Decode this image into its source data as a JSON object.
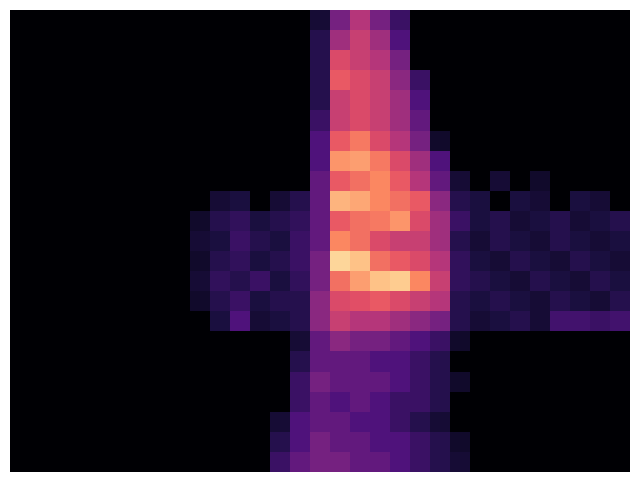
{
  "chart_data": {
    "type": "heatmap",
    "tick_labels": false,
    "zlim": [
      0,
      100
    ],
    "cells": [
      [
        0,
        0,
        0,
        0,
        0,
        0,
        0,
        0,
        0,
        0,
        0,
        0,
        0,
        0,
        0,
        10,
        35,
        50,
        35,
        20,
        0,
        0,
        0,
        0,
        0,
        0,
        0,
        0,
        0,
        0,
        0
      ],
      [
        0,
        0,
        0,
        0,
        0,
        0,
        0,
        0,
        0,
        0,
        0,
        0,
        0,
        0,
        0,
        15,
        45,
        55,
        45,
        25,
        0,
        0,
        0,
        0,
        0,
        0,
        0,
        0,
        0,
        0,
        0
      ],
      [
        0,
        0,
        0,
        0,
        0,
        0,
        0,
        0,
        0,
        0,
        0,
        0,
        0,
        0,
        0,
        15,
        60,
        55,
        50,
        35,
        0,
        0,
        0,
        0,
        0,
        0,
        0,
        0,
        0,
        0,
        0
      ],
      [
        0,
        0,
        0,
        0,
        0,
        0,
        0,
        0,
        0,
        0,
        0,
        0,
        0,
        0,
        0,
        15,
        65,
        60,
        55,
        40,
        20,
        0,
        0,
        0,
        0,
        0,
        0,
        0,
        0,
        0,
        0
      ],
      [
        0,
        0,
        0,
        0,
        0,
        0,
        0,
        0,
        0,
        0,
        0,
        0,
        0,
        0,
        0,
        15,
        55,
        60,
        55,
        45,
        25,
        0,
        0,
        0,
        0,
        0,
        0,
        0,
        0,
        0,
        0
      ],
      [
        0,
        0,
        0,
        0,
        0,
        0,
        0,
        0,
        0,
        0,
        0,
        0,
        0,
        0,
        0,
        20,
        55,
        60,
        55,
        45,
        30,
        0,
        0,
        0,
        0,
        0,
        0,
        0,
        0,
        0,
        0
      ],
      [
        0,
        0,
        0,
        0,
        0,
        0,
        0,
        0,
        0,
        0,
        0,
        0,
        0,
        0,
        0,
        25,
        65,
        72,
        60,
        50,
        35,
        8,
        0,
        0,
        0,
        0,
        0,
        0,
        0,
        0,
        0
      ],
      [
        0,
        0,
        0,
        0,
        0,
        0,
        0,
        0,
        0,
        0,
        0,
        0,
        0,
        0,
        0,
        25,
        78,
        80,
        72,
        60,
        45,
        25,
        0,
        0,
        0,
        0,
        0,
        0,
        0,
        0,
        0
      ],
      [
        0,
        0,
        0,
        0,
        0,
        0,
        0,
        0,
        0,
        0,
        0,
        0,
        0,
        0,
        0,
        30,
        65,
        70,
        75,
        65,
        50,
        30,
        10,
        0,
        10,
        0,
        8,
        0,
        0,
        0,
        0
      ],
      [
        0,
        0,
        0,
        0,
        0,
        0,
        0,
        0,
        0,
        0,
        10,
        12,
        0,
        10,
        15,
        30,
        85,
        82,
        75,
        70,
        65,
        40,
        15,
        12,
        0,
        12,
        10,
        0,
        12,
        10,
        0
      ],
      [
        0,
        0,
        0,
        0,
        0,
        0,
        0,
        0,
        0,
        8,
        15,
        18,
        12,
        15,
        18,
        30,
        65,
        70,
        72,
        78,
        60,
        45,
        20,
        12,
        15,
        10,
        12,
        15,
        10,
        12,
        15
      ],
      [
        0,
        0,
        0,
        0,
        0,
        0,
        0,
        0,
        0,
        10,
        12,
        20,
        15,
        12,
        20,
        30,
        75,
        70,
        60,
        55,
        55,
        45,
        15,
        10,
        15,
        12,
        10,
        15,
        12,
        10,
        12
      ],
      [
        0,
        0,
        0,
        0,
        0,
        0,
        0,
        0,
        0,
        8,
        15,
        18,
        12,
        15,
        20,
        35,
        92,
        88,
        70,
        65,
        60,
        50,
        18,
        12,
        10,
        15,
        12,
        10,
        15,
        12,
        10
      ],
      [
        0,
        0,
        0,
        0,
        0,
        0,
        0,
        0,
        0,
        10,
        18,
        15,
        20,
        12,
        18,
        35,
        70,
        80,
        88,
        90,
        75,
        55,
        18,
        15,
        12,
        10,
        15,
        12,
        10,
        15,
        12
      ],
      [
        0,
        0,
        0,
        0,
        0,
        0,
        0,
        0,
        0,
        8,
        15,
        20,
        12,
        15,
        15,
        40,
        60,
        62,
        65,
        60,
        55,
        50,
        15,
        12,
        15,
        12,
        10,
        15,
        12,
        10,
        15
      ],
      [
        0,
        0,
        0,
        0,
        0,
        0,
        0,
        0,
        0,
        0,
        12,
        25,
        10,
        12,
        15,
        40,
        55,
        50,
        50,
        45,
        40,
        35,
        15,
        10,
        12,
        15,
        10,
        22,
        22,
        20,
        22
      ],
      [
        0,
        0,
        0,
        0,
        0,
        0,
        0,
        0,
        0,
        0,
        0,
        0,
        0,
        0,
        10,
        30,
        40,
        35,
        35,
        30,
        25,
        20,
        8,
        0,
        0,
        0,
        0,
        0,
        0,
        0,
        0
      ],
      [
        0,
        0,
        0,
        0,
        0,
        0,
        0,
        0,
        0,
        0,
        0,
        0,
        0,
        0,
        15,
        30,
        30,
        30,
        25,
        25,
        20,
        15,
        0,
        0,
        0,
        0,
        0,
        0,
        0,
        0,
        0
      ],
      [
        0,
        0,
        0,
        0,
        0,
        0,
        0,
        0,
        0,
        0,
        0,
        0,
        0,
        0,
        20,
        35,
        30,
        30,
        30,
        25,
        20,
        15,
        8,
        0,
        0,
        0,
        0,
        0,
        0,
        0,
        0
      ],
      [
        0,
        0,
        0,
        0,
        0,
        0,
        0,
        0,
        0,
        0,
        0,
        0,
        0,
        0,
        20,
        30,
        25,
        30,
        25,
        20,
        20,
        15,
        0,
        0,
        0,
        0,
        0,
        0,
        0,
        0,
        0
      ],
      [
        0,
        0,
        0,
        0,
        0,
        0,
        0,
        0,
        0,
        0,
        0,
        0,
        0,
        10,
        25,
        30,
        30,
        25,
        25,
        20,
        15,
        10,
        0,
        0,
        0,
        0,
        0,
        0,
        0,
        0,
        0
      ],
      [
        0,
        0,
        0,
        0,
        0,
        0,
        0,
        0,
        0,
        0,
        0,
        0,
        0,
        15,
        25,
        35,
        30,
        30,
        25,
        25,
        20,
        15,
        8,
        0,
        0,
        0,
        0,
        0,
        0,
        0,
        0
      ],
      [
        0,
        0,
        0,
        0,
        0,
        0,
        0,
        0,
        0,
        0,
        0,
        0,
        0,
        20,
        30,
        35,
        35,
        30,
        30,
        25,
        20,
        15,
        10,
        0,
        0,
        0,
        0,
        0,
        0,
        0,
        0
      ]
    ]
  }
}
